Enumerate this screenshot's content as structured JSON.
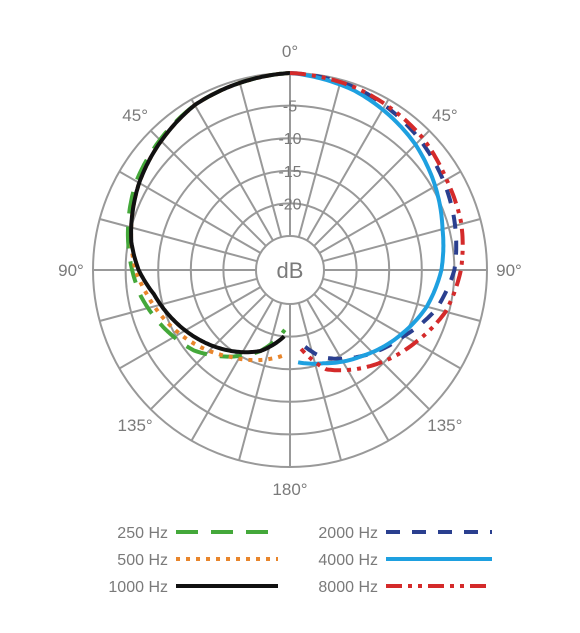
{
  "chart_data": {
    "type": "polar-line",
    "center_label": "dB",
    "radial_ticks": [
      "-5",
      "-10",
      "-15",
      "-20"
    ],
    "radial_range": [
      -25,
      0
    ],
    "angle_labels": [
      {
        "angle": 0,
        "text": "0°"
      },
      {
        "angle": 45,
        "text": "45°"
      },
      {
        "angle": 90,
        "text": "90°"
      },
      {
        "angle": 135,
        "text": "135°"
      },
      {
        "angle": 180,
        "text": "180°"
      },
      {
        "angle": 225,
        "text": "135°"
      },
      {
        "angle": 270,
        "text": "90°"
      },
      {
        "angle": 315,
        "text": "45°"
      }
    ],
    "side_note": "left half: 250 Hz, 500 Hz, 1000 Hz; right half: 2000 Hz, 4000 Hz, 8000 Hz",
    "series": [
      {
        "name": "250 Hz",
        "color": "#44a83a",
        "dash": "long-dash",
        "side": "left",
        "points": [
          [
            0,
            0
          ],
          [
            30,
            -1
          ],
          [
            60,
            -3
          ],
          [
            80,
            -5
          ],
          [
            90,
            -6
          ],
          [
            100,
            -7
          ],
          [
            115,
            -9
          ],
          [
            130,
            -11
          ],
          [
            145,
            -14
          ],
          [
            160,
            -17
          ],
          [
            175,
            -21
          ]
        ]
      },
      {
        "name": "500 Hz",
        "color": "#e8852b",
        "dash": "dot",
        "side": "left",
        "points": [
          [
            0,
            0
          ],
          [
            30,
            -1
          ],
          [
            60,
            -3.5
          ],
          [
            80,
            -5.5
          ],
          [
            90,
            -6.5
          ],
          [
            100,
            -8
          ],
          [
            115,
            -10
          ],
          [
            130,
            -12
          ],
          [
            145,
            -14
          ],
          [
            160,
            -15.5
          ],
          [
            175,
            -17
          ]
        ]
      },
      {
        "name": "1000 Hz",
        "color": "#111111",
        "dash": "solid",
        "side": "left",
        "points": [
          [
            0,
            0
          ],
          [
            30,
            -1
          ],
          [
            60,
            -3.5
          ],
          [
            80,
            -5.5
          ],
          [
            90,
            -7
          ],
          [
            100,
            -9
          ],
          [
            115,
            -11
          ],
          [
            130,
            -13
          ],
          [
            145,
            -15
          ],
          [
            160,
            -17
          ],
          [
            175,
            -20
          ]
        ]
      },
      {
        "name": "2000 Hz",
        "color": "#2a3f8f",
        "dash": "dash",
        "side": "right",
        "points": [
          [
            0,
            0
          ],
          [
            20,
            -0.5
          ],
          [
            45,
            -2
          ],
          [
            60,
            -3
          ],
          [
            75,
            -4
          ],
          [
            90,
            -5
          ],
          [
            105,
            -7
          ],
          [
            120,
            -10
          ],
          [
            140,
            -13
          ],
          [
            160,
            -16
          ],
          [
            172,
            -19
          ]
        ]
      },
      {
        "name": "4000 Hz",
        "color": "#1ea0e0",
        "dash": "solid",
        "side": "right",
        "points": [
          [
            0,
            0
          ],
          [
            20,
            -1
          ],
          [
            45,
            -3
          ],
          [
            60,
            -4.5
          ],
          [
            75,
            -6
          ],
          [
            90,
            -7
          ],
          [
            105,
            -8.5
          ],
          [
            120,
            -10.5
          ],
          [
            140,
            -13
          ],
          [
            160,
            -15
          ],
          [
            175,
            -16
          ]
        ]
      },
      {
        "name": "8000 Hz",
        "color": "#d42a2a",
        "dash": "dash-dot-dot",
        "side": "right",
        "points": [
          [
            0,
            0
          ],
          [
            20,
            -0.5
          ],
          [
            45,
            -1.5
          ],
          [
            60,
            -2.5
          ],
          [
            75,
            -3
          ],
          [
            90,
            -4
          ],
          [
            105,
            -5.5
          ],
          [
            120,
            -8
          ],
          [
            140,
            -11
          ],
          [
            160,
            -14
          ],
          [
            172,
            -18
          ]
        ]
      }
    ],
    "legend": [
      {
        "text": "250 Hz",
        "series": 0,
        "column": 0,
        "row": 0
      },
      {
        "text": "500 Hz",
        "series": 1,
        "column": 0,
        "row": 1
      },
      {
        "text": "1000 Hz",
        "series": 2,
        "column": 0,
        "row": 2
      },
      {
        "text": "2000 Hz",
        "series": 3,
        "column": 1,
        "row": 0
      },
      {
        "text": "4000 Hz",
        "series": 4,
        "column": 1,
        "row": 1
      },
      {
        "text": "8000 Hz",
        "series": 5,
        "column": 1,
        "row": 2
      }
    ],
    "legend_position": "bottom"
  }
}
